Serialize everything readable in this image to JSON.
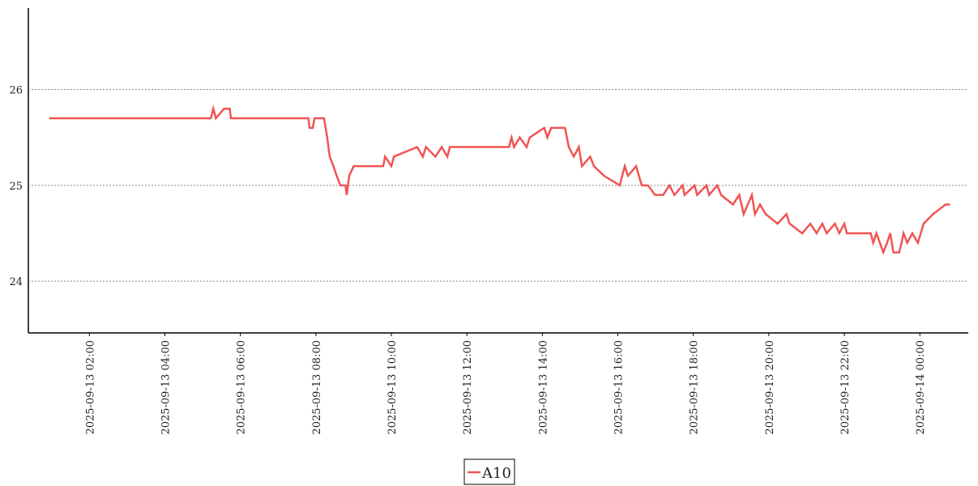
{
  "chart_data": {
    "type": "line",
    "x": [
      "2025-09-13 00:56",
      "2025-09-13 05:13",
      "2025-09-13 05:17",
      "2025-09-13 05:21",
      "2025-09-13 05:34",
      "2025-09-13 05:43",
      "2025-09-13 05:45",
      "2025-09-13 07:48",
      "2025-09-13 07:50",
      "2025-09-13 07:55",
      "2025-09-13 07:58",
      "2025-09-13 08:13",
      "2025-09-13 08:18",
      "2025-09-13 08:22",
      "2025-09-13 08:28",
      "2025-09-13 08:33",
      "2025-09-13 08:39",
      "2025-09-13 08:47",
      "2025-09-13 08:49",
      "2025-09-13 08:53",
      "2025-09-13 09:00",
      "2025-09-13 09:47",
      "2025-09-13 09:50",
      "2025-09-13 10:00",
      "2025-09-13 10:04",
      "2025-09-13 10:41",
      "2025-09-13 10:50",
      "2025-09-13 10:55",
      "2025-09-13 11:10",
      "2025-09-13 11:20",
      "2025-09-13 11:29",
      "2025-09-13 11:33",
      "2025-09-13 13:07",
      "2025-09-13 13:11",
      "2025-09-13 13:15",
      "2025-09-13 13:24",
      "2025-09-13 13:35",
      "2025-09-13 13:40",
      "2025-09-13 14:03",
      "2025-09-13 14:08",
      "2025-09-13 14:14",
      "2025-09-13 14:36",
      "2025-09-13 14:42",
      "2025-09-13 14:50",
      "2025-09-13 14:58",
      "2025-09-13 15:03",
      "2025-09-13 15:16",
      "2025-09-13 15:22",
      "2025-09-13 15:38",
      "2025-09-13 16:03",
      "2025-09-13 16:11",
      "2025-09-13 16:16",
      "2025-09-13 16:29",
      "2025-09-13 16:38",
      "2025-09-13 16:48",
      "2025-09-13 16:59",
      "2025-09-13 17:12",
      "2025-09-13 17:22",
      "2025-09-13 17:30",
      "2025-09-13 17:43",
      "2025-09-13 17:46",
      "2025-09-13 18:02",
      "2025-09-13 18:06",
      "2025-09-13 18:21",
      "2025-09-13 18:25",
      "2025-09-13 18:38",
      "2025-09-13 18:44",
      "2025-09-13 19:03",
      "2025-09-13 19:13",
      "2025-09-13 19:20",
      "2025-09-13 19:33",
      "2025-09-13 19:38",
      "2025-09-13 19:46",
      "2025-09-13 19:55",
      "2025-09-13 20:14",
      "2025-09-13 20:28",
      "2025-09-13 20:33",
      "2025-09-13 20:53",
      "2025-09-13 21:06",
      "2025-09-13 21:16",
      "2025-09-13 21:25",
      "2025-09-13 21:32",
      "2025-09-13 21:45",
      "2025-09-13 21:52",
      "2025-09-13 22:00",
      "2025-09-13 22:04",
      "2025-09-13 22:42",
      "2025-09-13 22:46",
      "2025-09-13 22:51",
      "2025-09-13 23:02",
      "2025-09-13 23:08",
      "2025-09-13 23:13",
      "2025-09-13 23:18",
      "2025-09-13 23:27",
      "2025-09-13 23:31",
      "2025-09-13 23:34",
      "2025-09-13 23:40",
      "2025-09-13 23:48",
      "2025-09-13 23:57",
      "2025-09-14 00:06",
      "2025-09-14 00:21",
      "2025-09-14 00:41",
      "2025-09-14 00:48"
    ],
    "series": [
      {
        "name": "A10",
        "color": "#f05454",
        "values": [
          25.7,
          25.7,
          25.8,
          25.7,
          25.8,
          25.8,
          25.7,
          25.7,
          25.6,
          25.6,
          25.7,
          25.7,
          25.5,
          25.3,
          25.2,
          25.1,
          25.0,
          25.0,
          24.9,
          25.1,
          25.2,
          25.2,
          25.3,
          25.2,
          25.3,
          25.4,
          25.3,
          25.4,
          25.3,
          25.4,
          25.3,
          25.4,
          25.4,
          25.5,
          25.4,
          25.5,
          25.4,
          25.5,
          25.6,
          25.5,
          25.6,
          25.6,
          25.4,
          25.3,
          25.4,
          25.2,
          25.3,
          25.2,
          25.1,
          25.0,
          25.2,
          25.1,
          25.2,
          25.0,
          25.0,
          24.9,
          24.9,
          25.0,
          24.9,
          25.0,
          24.9,
          25.0,
          24.9,
          25.0,
          24.9,
          25.0,
          24.9,
          24.8,
          24.9,
          24.7,
          24.9,
          24.7,
          24.8,
          24.7,
          24.6,
          24.7,
          24.6,
          24.5,
          24.6,
          24.5,
          24.6,
          24.5,
          24.6,
          24.5,
          24.6,
          24.5,
          24.5,
          24.4,
          24.5,
          24.3,
          24.4,
          24.5,
          24.3,
          24.3,
          24.4,
          24.5,
          24.4,
          24.5,
          24.4,
          24.6,
          24.7,
          24.8,
          24.8
        ]
      }
    ],
    "xlim": [
      "2025-09-13 00:23",
      "2025-09-14 01:17"
    ],
    "xticks": [
      "2025-09-13 02:00",
      "2025-09-13 04:00",
      "2025-09-13 06:00",
      "2025-09-13 08:00",
      "2025-09-13 10:00",
      "2025-09-13 12:00",
      "2025-09-13 14:00",
      "2025-09-13 16:00",
      "2025-09-13 18:00",
      "2025-09-13 20:00",
      "2025-09-13 22:00",
      "2025-09-14 00:00"
    ],
    "ylim": [
      23.46,
      26.85
    ],
    "yticks": [
      24,
      25,
      26
    ],
    "grid": true,
    "legend": "bottom"
  }
}
